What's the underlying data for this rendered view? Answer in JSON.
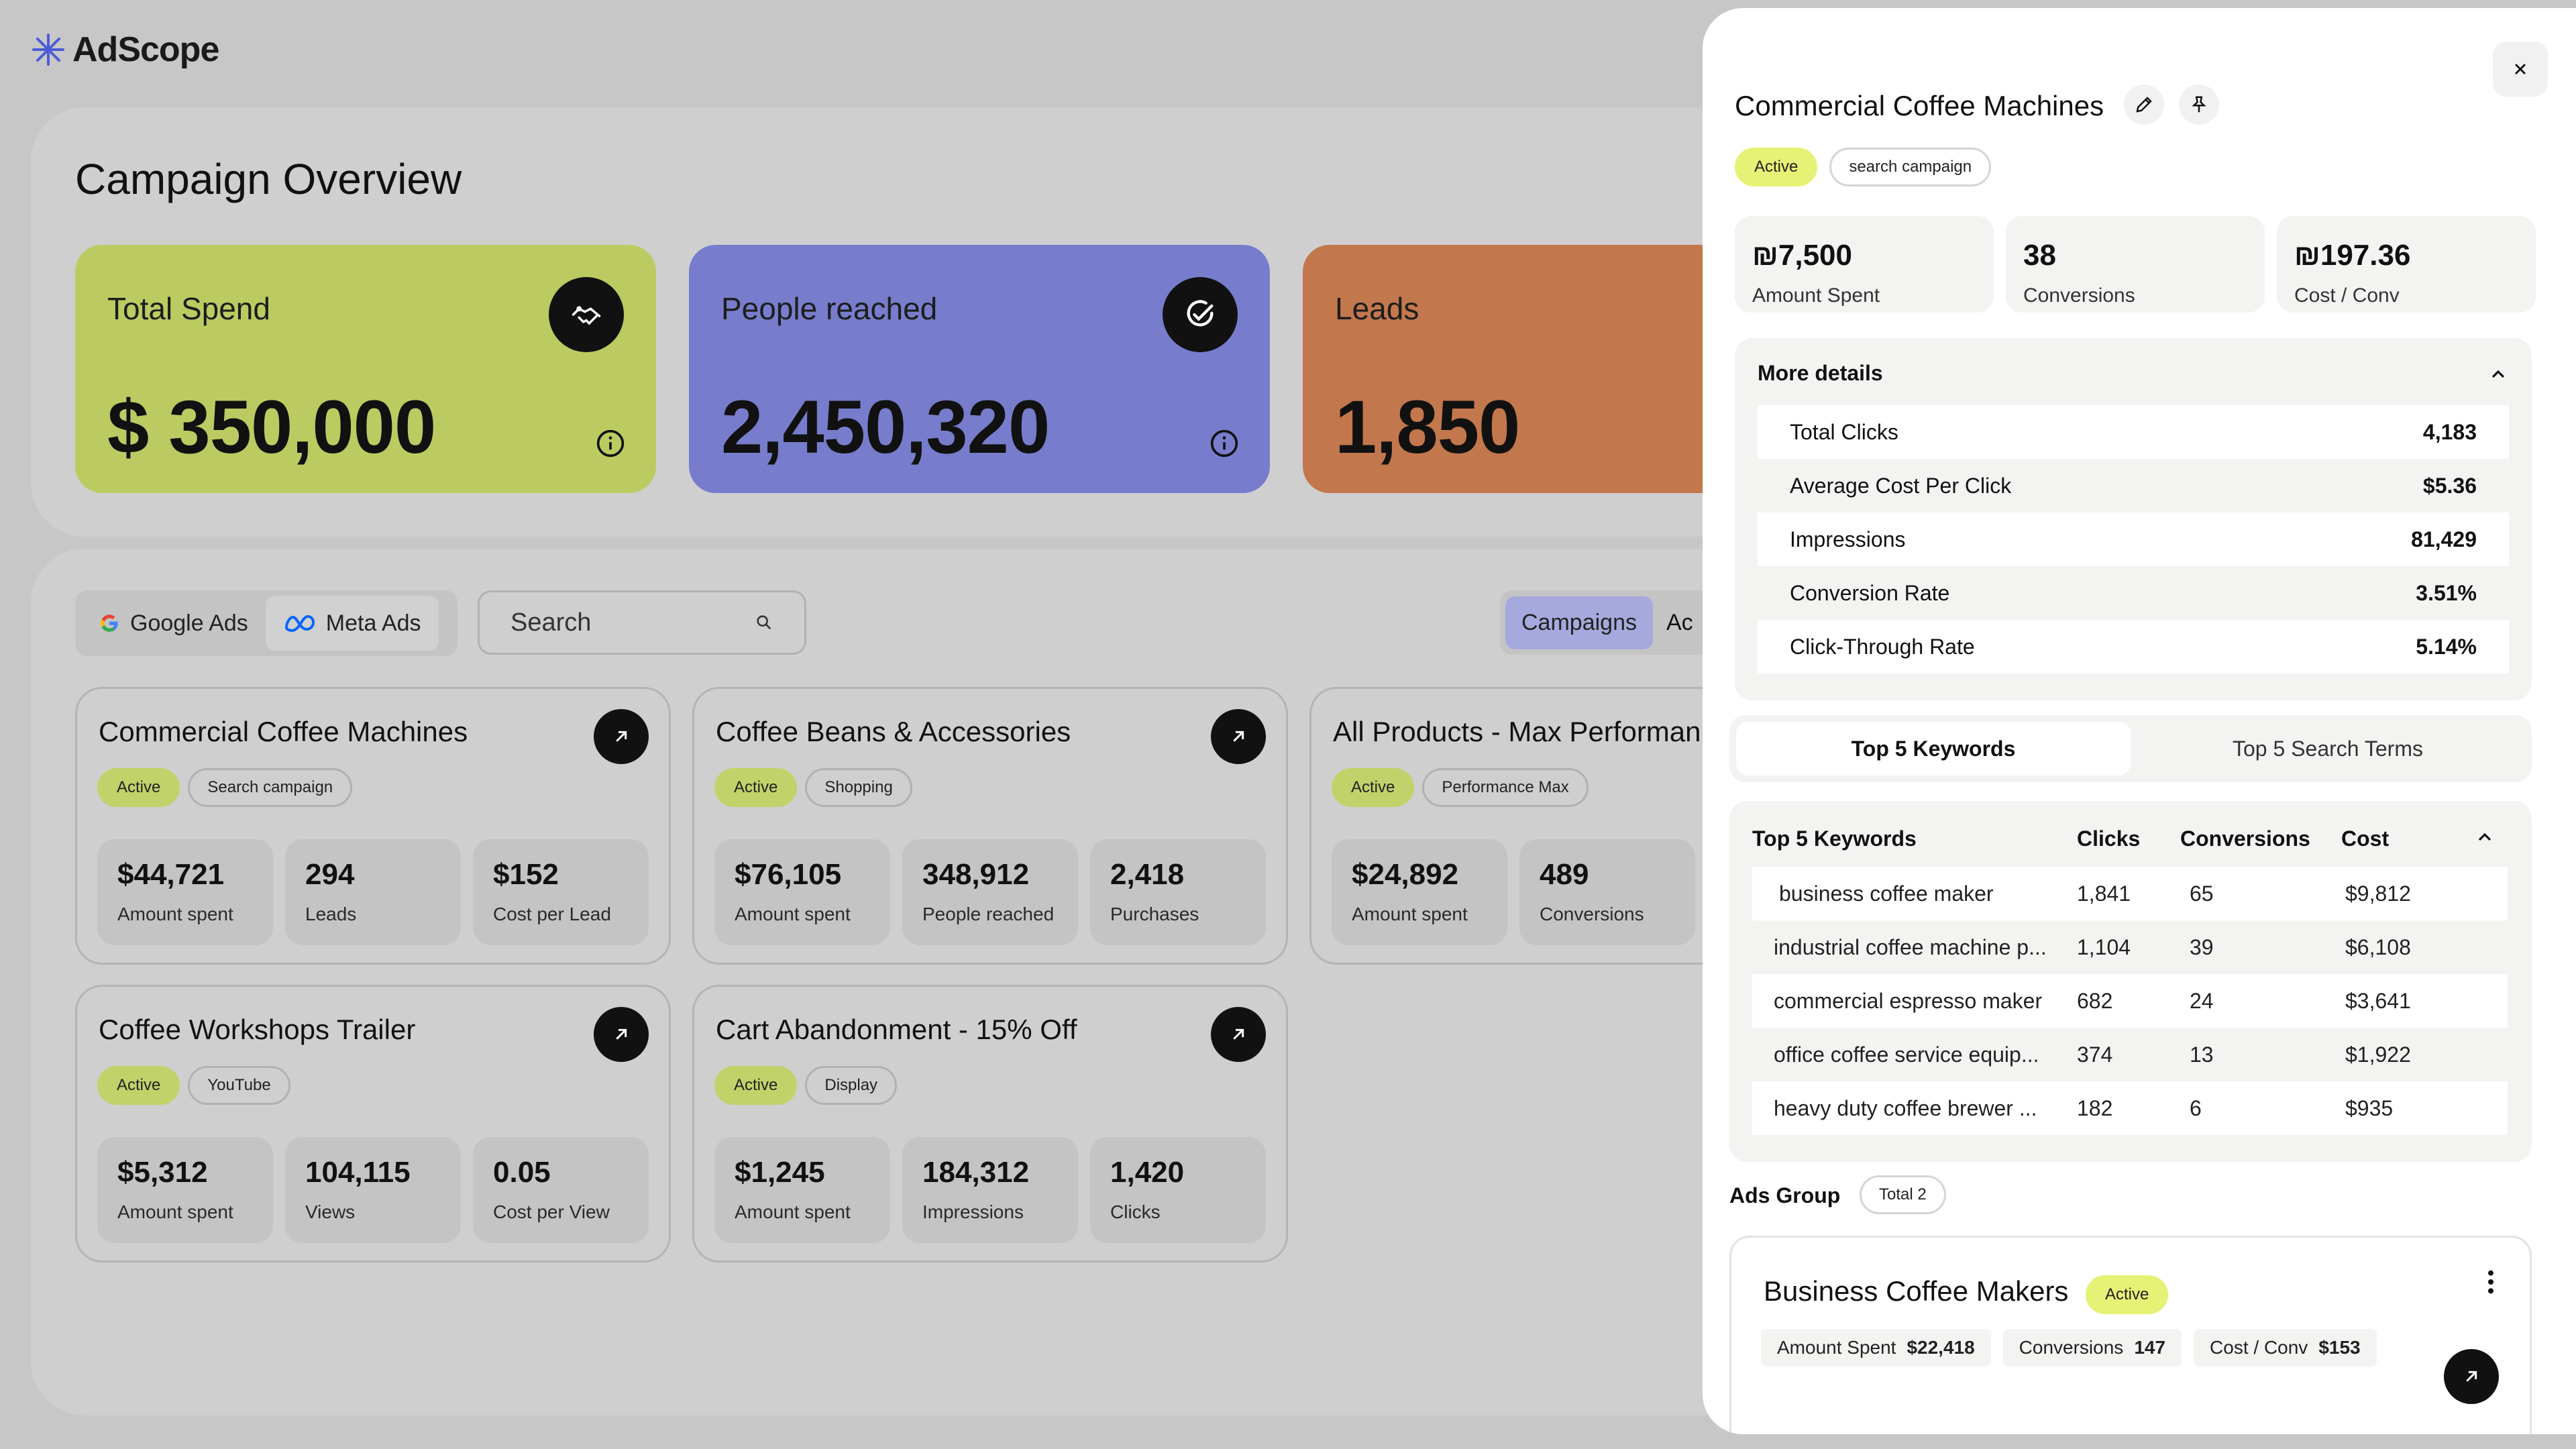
{
  "app": {
    "name": "AdScope",
    "accent": "#3b4bd8"
  },
  "overview": {
    "title": "Campaign Overview",
    "stats": [
      {
        "label": "Total Spend",
        "value": "$ 350,000",
        "color": "#bccb61",
        "icon": "handshake-icon"
      },
      {
        "label": "People reached",
        "value": "2,450,320",
        "color": "#777dcc",
        "icon": "check-circle-icon"
      },
      {
        "label": "Leads",
        "value": "1,850",
        "color": "#c2774d",
        "icon": "leads-icon"
      }
    ]
  },
  "toolbar": {
    "platforms": [
      "Google Ads",
      "Meta Ads"
    ],
    "search_placeholder": "Search",
    "views": [
      "Campaigns",
      "Ac"
    ]
  },
  "campaigns": [
    {
      "title": "Commercial Coffee Machines",
      "status": "Active",
      "type": "Search campaign",
      "metrics": [
        {
          "v": "$44,721",
          "l": "Amount spent"
        },
        {
          "v": "294",
          "l": "Leads"
        },
        {
          "v": "$152",
          "l": "Cost per Lead"
        }
      ]
    },
    {
      "title": "Coffee Beans & Accessories",
      "status": "Active",
      "type": "Shopping",
      "metrics": [
        {
          "v": "$76,105",
          "l": "Amount spent"
        },
        {
          "v": "348,912",
          "l": "People reached"
        },
        {
          "v": "2,418",
          "l": "Purchases"
        }
      ]
    },
    {
      "title": "All Products - Max Performan",
      "status": "Active",
      "type": "Performance Max",
      "metrics": [
        {
          "v": "$24,892",
          "l": "Amount spent"
        },
        {
          "v": "489",
          "l": "Conversions"
        }
      ]
    },
    {
      "title": "Coffee Workshops Trailer",
      "status": "Active",
      "type": "YouTube",
      "metrics": [
        {
          "v": "$5,312",
          "l": "Amount spent"
        },
        {
          "v": "104,115",
          "l": "Views"
        },
        {
          "v": "0.05",
          "l": "Cost per View"
        }
      ]
    },
    {
      "title": "Cart Abandonment - 15% Off",
      "status": "Active",
      "type": "Display",
      "metrics": [
        {
          "v": "$1,245",
          "l": "Amount spent"
        },
        {
          "v": "184,312",
          "l": "Impressions"
        },
        {
          "v": "1,420",
          "l": "Clicks"
        }
      ]
    }
  ],
  "panel": {
    "title": "Commercial Coffee Machines",
    "status": "Active",
    "type": "search campaign",
    "kpis": [
      {
        "v": "₪7,500",
        "l": "Amount Spent"
      },
      {
        "v": "38",
        "l": "Conversions"
      },
      {
        "v": "₪197.36",
        "l": "Cost / Conv"
      }
    ],
    "more_title": "More details",
    "details": [
      {
        "k": "Total Clicks",
        "v": "4,183"
      },
      {
        "k": "Average Cost Per Click",
        "v": "$5.36"
      },
      {
        "k": "Impressions",
        "v": "81,429"
      },
      {
        "k": "Conversion Rate",
        "v": "3.51%"
      },
      {
        "k": "Click-Through Rate",
        "v": "5.14%"
      }
    ],
    "tabs": [
      "Top 5 Keywords",
      "Top 5 Search Terms"
    ],
    "keywords_title": "Top 5 Keywords",
    "kw_columns": [
      "Clicks",
      "Conversions",
      "Cost"
    ],
    "keywords": [
      {
        "k": "business coffee maker",
        "c": "1,841",
        "v": "65",
        "cost": "$9,812"
      },
      {
        "k": "industrial coffee machine p...",
        "c": "1,104",
        "v": "39",
        "cost": "$6,108"
      },
      {
        "k": "commercial espresso maker",
        "c": "682",
        "v": "24",
        "cost": "$3,641"
      },
      {
        "k": "office coffee service equip...",
        "c": "374",
        "v": "13",
        "cost": "$1,922"
      },
      {
        "k": "heavy duty coffee brewer ...",
        "c": "182",
        "v": "6",
        "cost": "$935"
      }
    ],
    "ads_group_label": "Ads Group",
    "ads_total": "Total 2",
    "ad": {
      "name": "Business Coffee Makers",
      "status": "Active",
      "chips": [
        {
          "k": "Amount Spent",
          "v": "$22,418"
        },
        {
          "k": "Conversions",
          "v": "147"
        },
        {
          "k": "Cost / Conv",
          "v": "$153"
        }
      ]
    }
  }
}
